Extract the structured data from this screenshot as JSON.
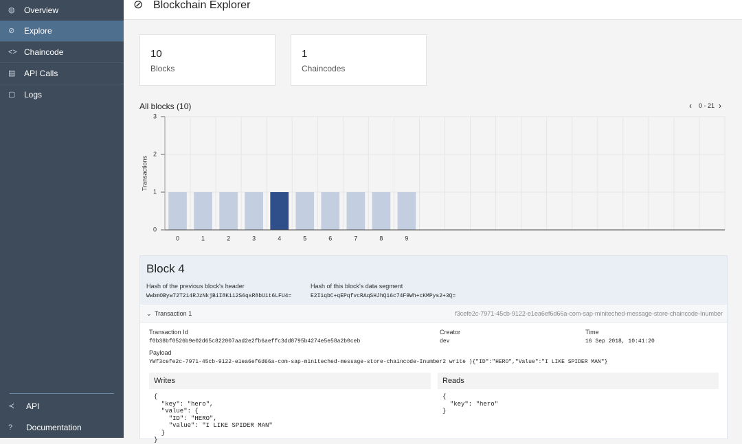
{
  "sidebar": {
    "items": [
      "Overview",
      "Explore",
      "Chaincode",
      "API Calls",
      "Logs"
    ],
    "active": 1,
    "bottom": [
      "API",
      "Documentation"
    ]
  },
  "header": {
    "title": "Blockchain Explorer"
  },
  "stats": [
    {
      "value": "10",
      "label": "Blocks"
    },
    {
      "value": "1",
      "label": "Chaincodes"
    }
  ],
  "pager": "0 - 21",
  "chart_data": {
    "type": "bar",
    "title": "All blocks (10)",
    "ylabel": "Transactions",
    "categories": [
      "0",
      "1",
      "2",
      "3",
      "4",
      "5",
      "6",
      "7",
      "8",
      "9",
      null,
      null,
      null,
      null,
      null,
      null,
      null,
      null,
      null,
      null,
      null,
      null
    ],
    "values": [
      1,
      1,
      1,
      1,
      1,
      1,
      1,
      1,
      1,
      1,
      null,
      null,
      null,
      null,
      null,
      null,
      null,
      null,
      null,
      null,
      null,
      null
    ],
    "color": "#c3cfe0",
    "selected_color": "#2f4f8a",
    "selected": 4,
    "ylim": [
      0,
      3
    ],
    "yticks": [
      0,
      1,
      2,
      3
    ],
    "grid": true
  },
  "block": {
    "title": "Block 4",
    "prev_hash_label": "Hash of the previous block's header",
    "prev_hash": "WwbmOByw72T2i4RJzNkjBiI8K1i2S6qsR8bUit6LFU4=",
    "data_hash_label": "Hash of this block's data segment",
    "data_hash": "E2I1qbC+qEPqfvcRAqSHJhQ16c74F9Wh+cKMPys2+3Q=",
    "transaction": {
      "title": "Transaction 1",
      "id_short": "f3cefe2c-7971-45cb-9122-e1ea6ef6d66a-com-sap-miniteched-message-store-chaincode-Inumber",
      "id_label": "Transaction Id",
      "id": "f0b38bf0526b9e02d65c822007aad2e2fb6aeffc3dd8795b4274e5e58a2b0ceb",
      "creator_label": "Creator",
      "creator": "dev",
      "time_label": "Time",
      "time": "16 Sep 2018, 10:41:20",
      "payload_label": "Payload",
      "payload": "YWf3cefe2c-7971-45cb-9122-e1ea6ef6d66a-com-sap-miniteched-message-store-chaincode-Inumber2 write ){\"ID\":\"HERO\",\"Value\":\"I LIKE SPIDER MAN\"}",
      "writes_label": "Writes",
      "writes": "{\n  \"key\": \"hero\",\n  \"value\": {\n    \"ID\": \"HERO\",\n    \"value\": \"I LIKE SPIDER MAN\"\n  }\n}",
      "reads_label": "Reads",
      "reads": "{\n  \"key\": \"hero\"\n}"
    }
  }
}
